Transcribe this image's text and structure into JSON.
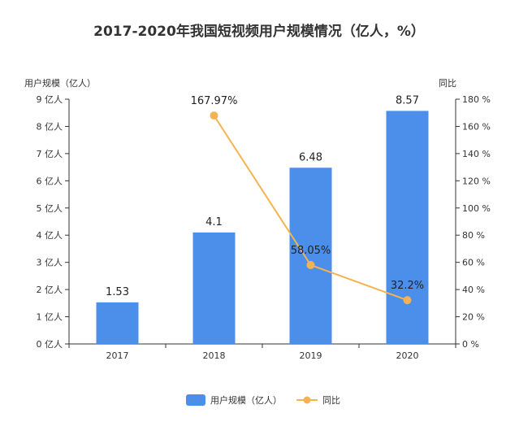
{
  "chart_data": {
    "type": "bar",
    "title": "2017-2020年我国短视频用户规模情况（亿人，%）",
    "categories": [
      "2017",
      "2018",
      "2019",
      "2020"
    ],
    "series": [
      {
        "name": "用户规模（亿人）",
        "type": "bar",
        "axis": "left",
        "values": [
          1.53,
          4.1,
          6.48,
          8.57
        ],
        "labels": [
          "1.53",
          "4.1",
          "6.48",
          "8.57"
        ],
        "color": "#4b8fea"
      },
      {
        "name": "同比",
        "type": "line",
        "axis": "right",
        "values": [
          null,
          167.97,
          58.05,
          32.2
        ],
        "labels": [
          "",
          "167.97%",
          "58.05%",
          "32.2%"
        ],
        "color": "#f4b350"
      }
    ],
    "y_left": {
      "label": "用户规模（亿人）",
      "min": 0,
      "max": 9,
      "step": 1,
      "ticks": [
        "0 亿人",
        "1 亿人",
        "2 亿人",
        "3 亿人",
        "4 亿人",
        "5 亿人",
        "6 亿人",
        "7 亿人",
        "8 亿人",
        "9 亿人"
      ]
    },
    "y_right": {
      "label": "同比",
      "min": 0,
      "max": 180,
      "step": 20,
      "ticks": [
        "0 %",
        "20 %",
        "40 %",
        "60 %",
        "80 %",
        "100 %",
        "120 %",
        "140 %",
        "160 %",
        "180 %"
      ]
    },
    "grid": false,
    "legend_position": "bottom-center",
    "legend": [
      "用户规模（亿人）",
      "同比"
    ]
  }
}
